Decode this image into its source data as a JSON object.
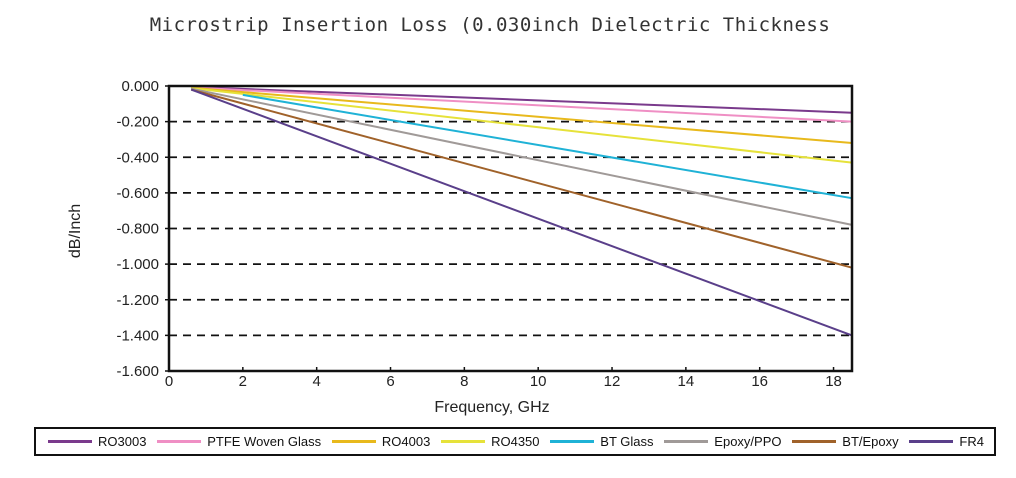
{
  "chart_data": {
    "type": "line",
    "title": "Microstrip Insertion Loss (0.030inch Dielectric Thickness",
    "xlabel": "Frequency, GHz",
    "ylabel": "dB/Inch",
    "xlim": [
      0,
      18.5
    ],
    "ylim": [
      -1.6,
      0
    ],
    "x_ticks": [
      "0",
      "2",
      "4",
      "6",
      "8",
      "10",
      "12",
      "14",
      "16",
      "18"
    ],
    "y_ticks": [
      "0.000",
      "-0.200",
      "-0.400",
      "-0.600",
      "-0.800",
      "-1.000",
      "-1.200",
      "-1.400",
      "-1.600"
    ],
    "grid": "horizontal dashed",
    "legend_position": "bottom",
    "series": [
      {
        "name": "RO3003",
        "color": "#7a3a8c",
        "x": [
          0.6,
          18.5
        ],
        "y": [
          -0.005,
          -0.15
        ]
      },
      {
        "name": "PTFE Woven Glass",
        "color": "#ef8fc4",
        "x": [
          0.6,
          18.5
        ],
        "y": [
          -0.008,
          -0.2
        ]
      },
      {
        "name": "RO4003",
        "color": "#e8b91c",
        "x": [
          0.6,
          18.5
        ],
        "y": [
          -0.01,
          -0.32
        ]
      },
      {
        "name": "RO4350",
        "color": "#e6e23a",
        "x": [
          0.6,
          18.5
        ],
        "y": [
          -0.012,
          -0.43
        ]
      },
      {
        "name": "BT Glass",
        "color": "#1fb2d6",
        "x": [
          2.0,
          18.5
        ],
        "y": [
          -0.05,
          -0.63
        ]
      },
      {
        "name": "Epoxy/PPO",
        "color": "#a09a98",
        "x": [
          0.6,
          18.5
        ],
        "y": [
          -0.015,
          -0.78
        ]
      },
      {
        "name": "BT/Epoxy",
        "color": "#a0622a",
        "x": [
          0.6,
          18.5
        ],
        "y": [
          -0.02,
          -1.02
        ]
      },
      {
        "name": "FR4",
        "color": "#5a3f8a",
        "x": [
          0.6,
          18.5
        ],
        "y": [
          -0.02,
          -1.4
        ]
      }
    ]
  }
}
